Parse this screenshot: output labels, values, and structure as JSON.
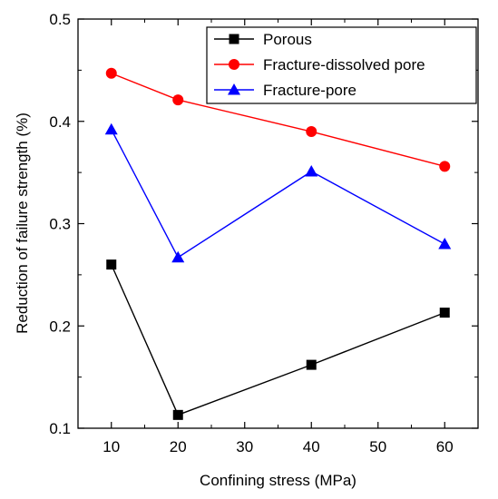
{
  "chart_data": {
    "type": "line",
    "xlabel": "Confining stress (MPa)",
    "ylabel": "Reduction of failure strength (%)",
    "xlim": [
      5,
      65
    ],
    "ylim": [
      0.1,
      0.5
    ],
    "x_ticks": [
      10,
      20,
      30,
      40,
      50,
      60
    ],
    "y_ticks": [
      0.1,
      0.2,
      0.3,
      0.4,
      0.5
    ],
    "x_tick_labels": [
      "10",
      "20",
      "30",
      "40",
      "50",
      "60"
    ],
    "y_tick_labels": [
      "0.1",
      "0.2",
      "0.3",
      "0.4",
      "0.5"
    ],
    "grid": false,
    "legend_position": "top-right",
    "series": [
      {
        "name": "Porous",
        "color": "#000000",
        "marker": "square",
        "x": [
          10,
          20,
          40,
          60
        ],
        "values": [
          0.26,
          0.113,
          0.162,
          0.213
        ]
      },
      {
        "name": "Fracture-dissolved pore",
        "color": "#ff0000",
        "marker": "circle",
        "x": [
          10,
          20,
          40,
          60
        ],
        "values": [
          0.447,
          0.421,
          0.39,
          0.356
        ]
      },
      {
        "name": "Fracture-pore",
        "color": "#0000ff",
        "marker": "triangle",
        "x": [
          10,
          20,
          40,
          60
        ],
        "values": [
          0.392,
          0.267,
          0.351,
          0.28
        ]
      }
    ]
  }
}
